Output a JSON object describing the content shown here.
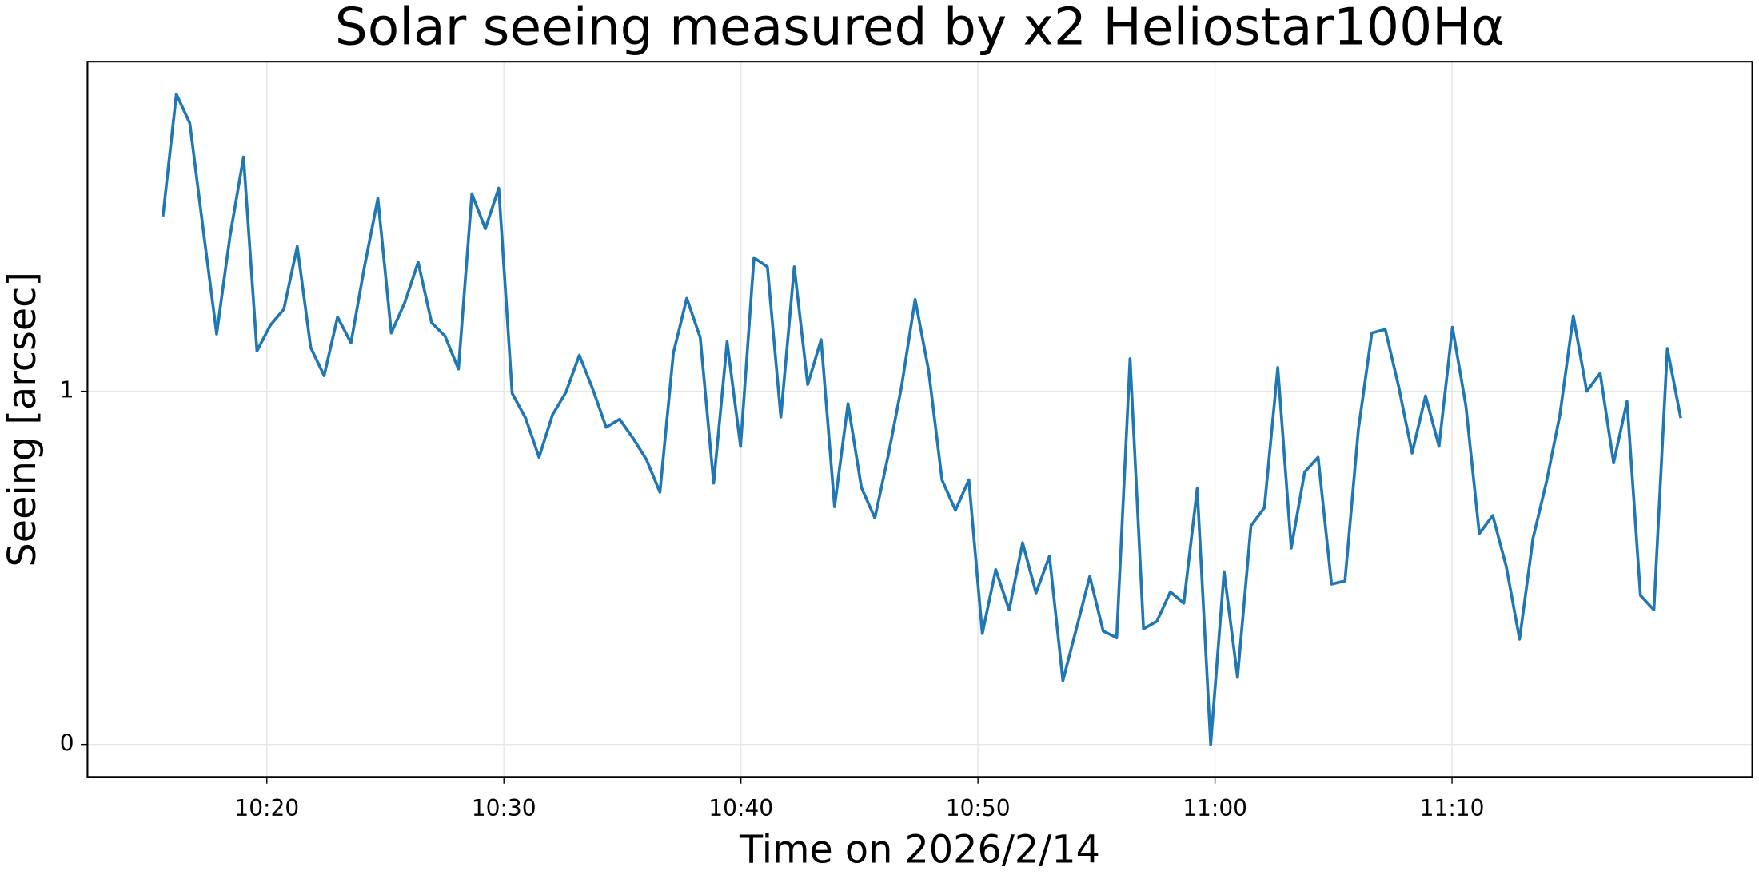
{
  "chart_data": {
    "type": "line",
    "title": "Solar seeing measured by x2 Heliostar100Hα",
    "x_label": "Time on 2026/2/14",
    "y_label": "Seeing [arcsec]",
    "x": [
      "10:15:37",
      "10:16:11",
      "10:16:45",
      "10:17:19",
      "10:17:53",
      "10:18:27",
      "10:19:01",
      "10:19:35",
      "10:20:09",
      "10:20:43",
      "10:21:17",
      "10:21:51",
      "10:22:25",
      "10:22:59",
      "10:23:33",
      "10:24:07",
      "10:24:41",
      "10:25:15",
      "10:25:49",
      "10:26:23",
      "10:26:57",
      "10:27:31",
      "10:28:05",
      "10:28:39",
      "10:29:13",
      "10:29:47",
      "10:30:21",
      "10:30:55",
      "10:31:29",
      "10:32:03",
      "10:32:37",
      "10:33:11",
      "10:33:45",
      "10:34:19",
      "10:34:53",
      "10:35:27",
      "10:36:01",
      "10:36:35",
      "10:37:09",
      "10:37:43",
      "10:38:17",
      "10:38:51",
      "10:39:25",
      "10:39:59",
      "10:40:33",
      "10:41:07",
      "10:41:41",
      "10:42:15",
      "10:42:49",
      "10:43:23",
      "10:43:57",
      "10:44:31",
      "10:45:05",
      "10:45:39",
      "10:46:13",
      "10:46:47",
      "10:47:21",
      "10:47:55",
      "10:48:29",
      "10:49:03",
      "10:49:37",
      "10:50:11",
      "10:50:45",
      "10:51:19",
      "10:51:53",
      "10:52:27",
      "10:53:01",
      "10:53:35",
      "10:54:09",
      "10:54:43",
      "10:55:17",
      "10:55:51",
      "10:56:25",
      "10:56:59",
      "10:57:33",
      "10:58:07",
      "10:58:41",
      "10:59:15",
      "10:59:49",
      "11:00:23",
      "11:00:57",
      "11:01:31",
      "11:02:05",
      "11:02:39",
      "11:03:13",
      "11:03:47",
      "11:04:21",
      "11:04:55",
      "11:05:29",
      "11:06:03",
      "11:06:37",
      "11:07:11",
      "11:07:45",
      "11:08:19",
      "11:08:53",
      "11:09:27",
      "11:10:01",
      "11:10:35",
      "11:11:09",
      "11:11:43",
      "11:12:17",
      "11:12:51",
      "11:13:25",
      "11:13:59",
      "11:14:33",
      "11:15:07",
      "11:15:41",
      "11:16:15",
      "11:16:49",
      "11:17:23",
      "11:17:57",
      "11:18:31",
      "11:19:05",
      "11:19:39"
    ],
    "series": [
      {
        "color": "#1f77b4",
        "values": [
          1.495,
          1.841,
          1.759,
          1.457,
          1.162,
          1.441,
          1.663,
          1.114,
          1.187,
          1.232,
          1.41,
          1.124,
          1.044,
          1.21,
          1.137,
          1.352,
          1.546,
          1.165,
          1.251,
          1.365,
          1.194,
          1.156,
          1.063,
          1.559,
          1.46,
          1.575,
          0.994,
          0.924,
          0.813,
          0.933,
          0.997,
          1.102,
          1.006,
          0.898,
          0.921,
          0.867,
          0.806,
          0.714,
          1.108,
          1.263,
          1.152,
          0.74,
          1.14,
          0.844,
          1.378,
          1.352,
          0.927,
          1.352,
          1.019,
          1.146,
          0.673,
          0.965,
          0.727,
          0.641,
          0.819,
          1.016,
          1.26,
          1.06,
          0.749,
          0.663,
          0.749,
          0.314,
          0.495,
          0.381,
          0.571,
          0.429,
          0.533,
          0.181,
          0.327,
          0.476,
          0.321,
          0.302,
          1.092,
          0.327,
          0.349,
          0.432,
          0.4,
          0.724,
          0,
          0.489,
          0.19,
          0.619,
          0.67,
          1.067,
          0.556,
          0.771,
          0.813,
          0.454,
          0.463,
          0.892,
          1.165,
          1.175,
          1.013,
          0.825,
          0.987,
          0.844,
          1.181,
          0.959,
          0.597,
          0.648,
          0.505,
          0.298,
          0.584,
          0.743,
          0.933,
          1.213,
          1,
          1.051,
          0.797,
          0.971,
          0.422,
          0.381,
          1.121,
          0.924
        ]
      }
    ],
    "xlim": [
      "10:12:26",
      "11:22:40"
    ],
    "xticks": [
      "10:20",
      "10:30",
      "10:40",
      "10:50",
      "11:00",
      "11:10"
    ],
    "ylim": [
      -0.092,
      1.933
    ],
    "yticks": [
      0,
      1
    ],
    "grid": true
  }
}
